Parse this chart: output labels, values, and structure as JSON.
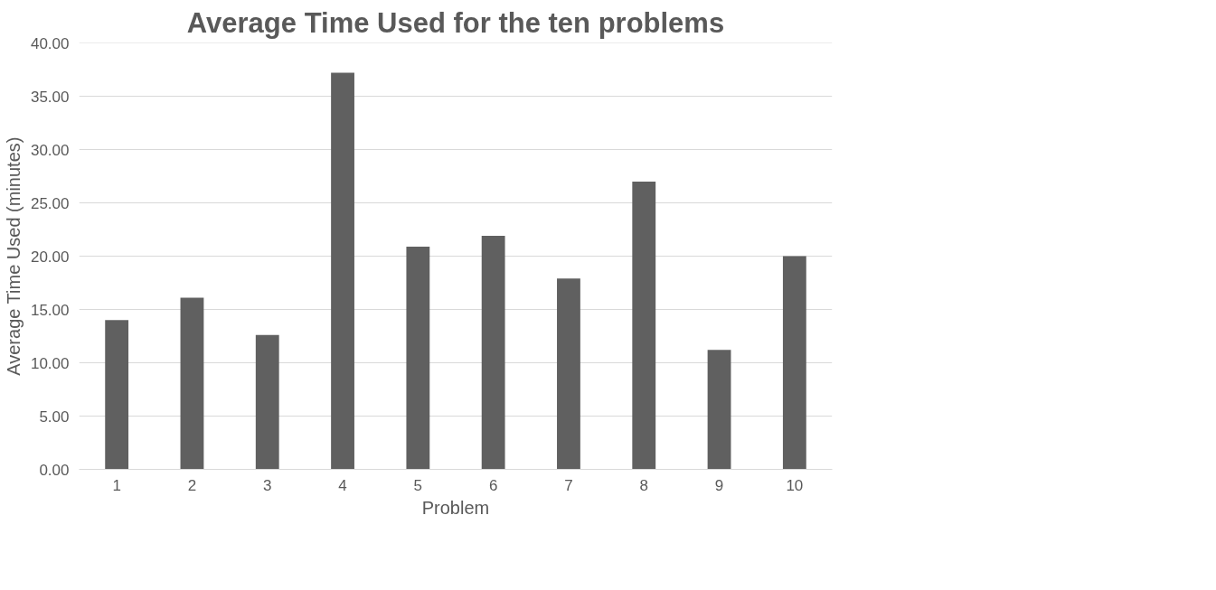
{
  "chart_data": {
    "type": "bar",
    "title": "Average Time Used for the ten problems",
    "xlabel": "Problem",
    "ylabel": "Average Time Used (minutes)",
    "categories": [
      "1",
      "2",
      "3",
      "4",
      "5",
      "6",
      "7",
      "8",
      "9",
      "10"
    ],
    "values": [
      14.0,
      16.1,
      12.6,
      37.2,
      20.9,
      21.9,
      17.9,
      27.0,
      11.2,
      20.0
    ],
    "color": "#606060",
    "ylim": [
      0,
      40
    ],
    "yticks": [
      {
        "value": 0,
        "label": "0.00"
      },
      {
        "value": 5,
        "label": "5.00"
      },
      {
        "value": 10,
        "label": "10.00"
      },
      {
        "value": 15,
        "label": "15.00"
      },
      {
        "value": 20,
        "label": "20.00"
      },
      {
        "value": 25,
        "label": "25.00"
      },
      {
        "value": 30,
        "label": "30.00"
      },
      {
        "value": 35,
        "label": "35.00"
      },
      {
        "value": 40,
        "label": "40.00"
      }
    ],
    "grid": "y"
  }
}
